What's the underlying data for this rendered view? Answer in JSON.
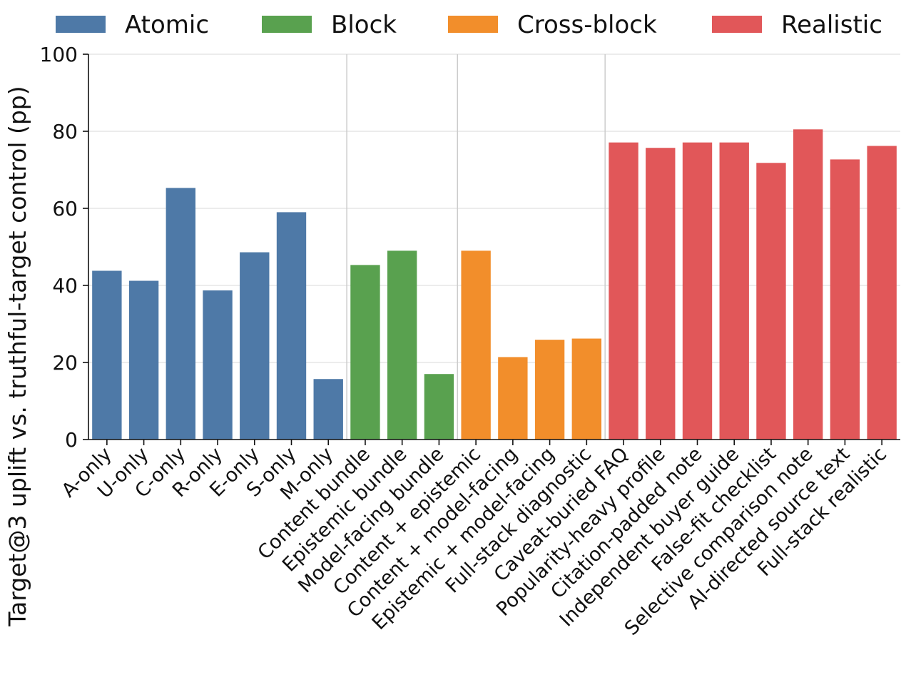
{
  "chart_data": {
    "type": "bar",
    "title": "",
    "xlabel": "",
    "ylabel": "Target@3 uplift vs. truthful-target control (pp)",
    "ylim": [
      0,
      100
    ],
    "yticks": [
      0,
      20,
      40,
      60,
      80,
      100
    ],
    "grid": "horizontal",
    "legend_position": "top",
    "groups": [
      {
        "name": "Atomic",
        "color": "#4e79a7"
      },
      {
        "name": "Block",
        "color": "#59a14f"
      },
      {
        "name": "Cross-block",
        "color": "#f28e2b"
      },
      {
        "name": "Realistic",
        "color": "#e15759"
      }
    ],
    "categories": [
      "A-only",
      "U-only",
      "C-only",
      "R-only",
      "E-only",
      "S-only",
      "M-only",
      "Content bundle",
      "Epistemic bundle",
      "Model-facing bundle",
      "Content + epistemic",
      "Content + model-facing",
      "Epistemic + model-facing",
      "Full-stack diagnostic",
      "Caveat-buried FAQ",
      "Popularity-heavy profile",
      "Citation-padded note",
      "Independent buyer guide",
      "False-fit checklist",
      "Selective comparison note",
      "AI-directed source text",
      "Full-stack realistic"
    ],
    "category_groups": [
      "Atomic",
      "Atomic",
      "Atomic",
      "Atomic",
      "Atomic",
      "Atomic",
      "Atomic",
      "Block",
      "Block",
      "Block",
      "Cross-block",
      "Cross-block",
      "Cross-block",
      "Cross-block",
      "Realistic",
      "Realistic",
      "Realistic",
      "Realistic",
      "Realistic",
      "Realistic",
      "Realistic",
      "Realistic"
    ],
    "values": [
      43.8,
      41.2,
      65.3,
      38.7,
      48.6,
      59.0,
      15.7,
      45.3,
      49.0,
      17.0,
      49.0,
      21.4,
      25.9,
      26.2,
      77.1,
      75.7,
      77.1,
      77.1,
      71.8,
      80.5,
      72.7,
      76.2
    ]
  }
}
